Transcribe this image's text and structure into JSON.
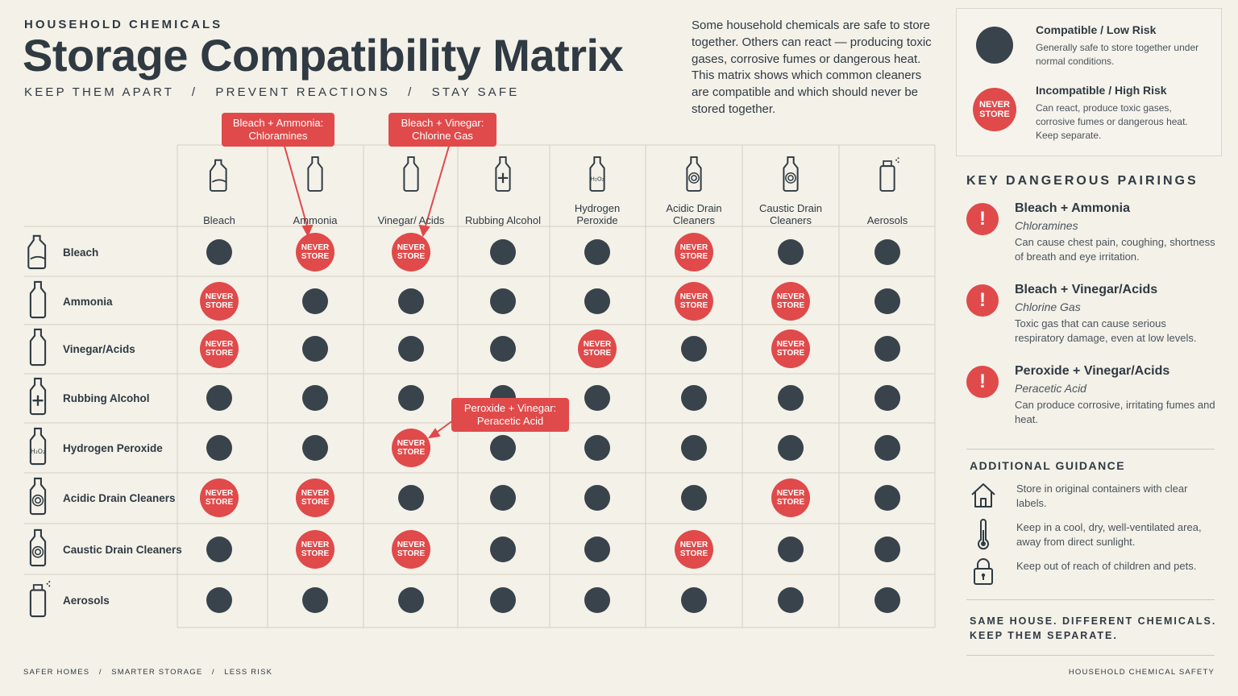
{
  "header": {
    "eyebrow": "HOUSEHOLD CHEMICALS",
    "title": "Storage Compatibility Matrix",
    "subtitle": "KEEP THEM APART   /   PREVENT REACTIONS   /   STAY SAFE",
    "intro": "Some household chemicals are safe to store together. Others can react — producing toxic gases, corrosive fumes or dangerous heat. This matrix shows which common cleaners are compatible and which should never be stored together."
  },
  "legend": {
    "compatible_title": "Compatible / Low Risk",
    "compatible_text": "Generally safe to store together under normal conditions.",
    "incompatible_badge": "NEVER STORE",
    "incompatible_title": "Incompatible / High Risk",
    "incompatible_text": "Can react, produce toxic gases, corrosive fumes or dangerous heat. Keep separate."
  },
  "matrix": {
    "never_label": "NEVER STORE",
    "columns": [
      "Bleach",
      "Ammonia",
      "Vinegar/ Acids",
      "Rubbing Alcohol",
      "Hydrogen Peroxide",
      "Acidic Drain Cleaners",
      "Caustic Drain Cleaners",
      "Aerosols"
    ],
    "rows": [
      "Bleach",
      "Ammonia",
      "Vinegar/Acids",
      "Rubbing Alcohol",
      "Hydrogen Peroxide",
      "Acidic Drain Cleaners",
      "Caustic Drain Cleaners",
      "Aerosols"
    ],
    "cells": [
      [
        "ok",
        "bad",
        "bad",
        "ok",
        "ok",
        "bad",
        "ok",
        "ok"
      ],
      [
        "bad",
        "ok",
        "ok",
        "ok",
        "ok",
        "bad",
        "bad",
        "ok"
      ],
      [
        "bad",
        "ok",
        "ok",
        "ok",
        "bad",
        "ok",
        "bad",
        "ok"
      ],
      [
        "ok",
        "ok",
        "ok",
        "ok",
        "ok",
        "ok",
        "ok",
        "ok"
      ],
      [
        "ok",
        "ok",
        "bad",
        "ok",
        "ok",
        "ok",
        "ok",
        "ok"
      ],
      [
        "bad",
        "bad",
        "ok",
        "ok",
        "ok",
        "ok",
        "bad",
        "ok"
      ],
      [
        "ok",
        "bad",
        "bad",
        "ok",
        "ok",
        "bad",
        "ok",
        "ok"
      ],
      [
        "ok",
        "ok",
        "ok",
        "ok",
        "ok",
        "ok",
        "ok",
        "ok"
      ]
    ],
    "callouts": [
      {
        "line1": "Bleach + Ammonia:",
        "line2": "Chloramines"
      },
      {
        "line1": "Bleach + Vinegar:",
        "line2": "Chlorine Gas"
      },
      {
        "line1": "Peroxide + Vinegar:",
        "line2": "Peracetic Acid"
      }
    ]
  },
  "key_pairings": {
    "heading": "KEY DANGEROUS PAIRINGS",
    "items": [
      {
        "title": "Bleach + Ammonia",
        "sub": "Chloramines",
        "text": "Can cause chest pain, coughing, shortness of breath and eye irritation."
      },
      {
        "title": "Bleach + Vinegar/Acids",
        "sub": "Chlorine Gas",
        "text": "Toxic gas that can cause serious respiratory damage, even at low levels."
      },
      {
        "title": "Peroxide + Vinegar/Acids",
        "sub": "Peracetic Acid",
        "text": "Can produce corrosive, irritating fumes and heat."
      }
    ]
  },
  "guidance": {
    "heading": "ADDITIONAL GUIDANCE",
    "items": [
      {
        "icon": "house-icon",
        "text": "Store in original containers with clear labels."
      },
      {
        "icon": "thermometer-icon",
        "text": "Keep in a cool, dry, well-ventilated area, away from direct sunlight."
      },
      {
        "icon": "lock-icon",
        "text": "Keep out of reach of children and pets."
      }
    ],
    "closing": "SAME HOUSE. DIFFERENT CHEMICALS. KEEP THEM SEPARATE."
  },
  "footer": {
    "left": "SAFER HOMES   /   SMARTER STORAGE   /   LESS RISK",
    "right": "HOUSEHOLD CHEMICAL SAFETY"
  },
  "colors": {
    "background": "#f4f1e9",
    "ink": "#2f3a42",
    "compatible": "#39434b",
    "danger": "#e04a4a"
  }
}
